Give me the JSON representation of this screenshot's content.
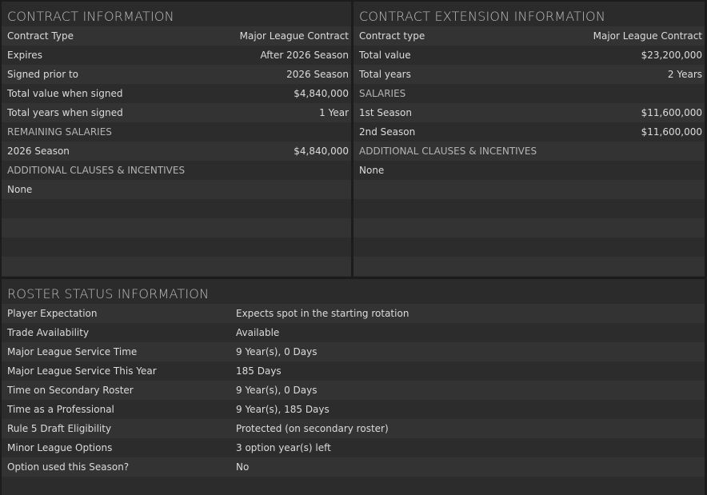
{
  "contract": {
    "title": "CONTRACT INFORMATION",
    "rows": [
      {
        "label": "Contract Type",
        "value": "Major League Contract"
      },
      {
        "label": "Expires",
        "value": "After 2026 Season"
      },
      {
        "label": "Signed prior to",
        "value": "2026 Season"
      },
      {
        "label": "Total value when signed",
        "value": "$4,840,000"
      },
      {
        "label": "Total years when signed",
        "value": "1 Year"
      },
      {
        "label": "REMAINING SALARIES",
        "section": true
      },
      {
        "label": "2026 Season",
        "value": "$4,840,000"
      },
      {
        "label": "ADDITIONAL CLAUSES & INCENTIVES",
        "section": true
      },
      {
        "label": "None"
      },
      {
        "label": ""
      },
      {
        "label": ""
      },
      {
        "label": ""
      },
      {
        "label": ""
      }
    ]
  },
  "extension": {
    "title": "CONTRACT EXTENSION INFORMATION",
    "rows": [
      {
        "label": "Contract type",
        "value": "Major League Contract"
      },
      {
        "label": "Total value",
        "value": "$23,200,000"
      },
      {
        "label": "Total years",
        "value": "2 Years"
      },
      {
        "label": "SALARIES",
        "section": true
      },
      {
        "label": "1st Season",
        "value": "$11,600,000"
      },
      {
        "label": "2nd Season",
        "value": "$11,600,000"
      },
      {
        "label": "ADDITIONAL CLAUSES & INCENTIVES",
        "section": true
      },
      {
        "label": "None"
      },
      {
        "label": ""
      },
      {
        "label": ""
      },
      {
        "label": ""
      },
      {
        "label": ""
      },
      {
        "label": ""
      }
    ]
  },
  "roster": {
    "title": "ROSTER STATUS INFORMATION",
    "rows": [
      {
        "label": "Player Expectation",
        "value": "Expects spot in the starting rotation"
      },
      {
        "label": "Trade Availability",
        "value": "Available"
      },
      {
        "label": "Major League Service Time",
        "value": "9 Year(s), 0 Days"
      },
      {
        "label": "Major League Service This Year",
        "value": "185 Days"
      },
      {
        "label": "Time on Secondary Roster",
        "value": "9 Year(s), 0 Days"
      },
      {
        "label": "Time as a Professional",
        "value": "9 Year(s), 185 Days"
      },
      {
        "label": "Rule 5 Draft Eligibility",
        "value": "Protected (on secondary roster)"
      },
      {
        "label": "Minor League Options",
        "value": "3 option year(s) left"
      },
      {
        "label": "Option used this Season?",
        "value": "No"
      },
      {
        "label": ""
      }
    ]
  }
}
